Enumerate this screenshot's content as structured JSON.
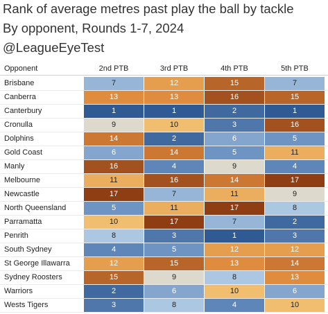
{
  "titles": {
    "line1": "Rank of average metres past play the ball by tackle",
    "line2": "By opponent, Rounds 1-7, 2024",
    "line3": "@LeagueEyeTest"
  },
  "chart_data": {
    "type": "heatmap",
    "row_header": "Opponent",
    "columns": [
      "2nd PTB",
      "3rd PTB",
      "4th PTB",
      "5th PTB"
    ],
    "rows": [
      {
        "label": "Brisbane",
        "values": [
          7,
          12,
          15,
          7
        ]
      },
      {
        "label": "Canberra",
        "values": [
          13,
          13,
          16,
          15
        ]
      },
      {
        "label": "Canterbury",
        "values": [
          1,
          1,
          2,
          1
        ]
      },
      {
        "label": "Cronulla",
        "values": [
          9,
          10,
          3,
          16
        ]
      },
      {
        "label": "Dolphins",
        "values": [
          14,
          2,
          6,
          5
        ]
      },
      {
        "label": "Gold Coast",
        "values": [
          6,
          14,
          5,
          11
        ]
      },
      {
        "label": "Manly",
        "values": [
          16,
          4,
          9,
          4
        ]
      },
      {
        "label": "Melbourne",
        "values": [
          11,
          16,
          14,
          17
        ]
      },
      {
        "label": "Newcastle",
        "values": [
          17,
          7,
          11,
          9
        ]
      },
      {
        "label": "North Queensland",
        "values": [
          5,
          11,
          17,
          8
        ]
      },
      {
        "label": "Parramatta",
        "values": [
          10,
          17,
          7,
          2
        ]
      },
      {
        "label": "Penrith",
        "values": [
          8,
          3,
          1,
          3
        ]
      },
      {
        "label": "South Sydney",
        "values": [
          4,
          5,
          12,
          12
        ]
      },
      {
        "label": "St George Illawarra",
        "values": [
          12,
          15,
          13,
          14
        ]
      },
      {
        "label": "Sydney Roosters",
        "values": [
          15,
          9,
          8,
          13
        ]
      },
      {
        "label": "Warriors",
        "values": [
          2,
          6,
          10,
          6
        ]
      },
      {
        "label": "Wests Tigers",
        "values": [
          3,
          8,
          4,
          10
        ]
      }
    ],
    "color_scale": {
      "low_rank": "#2f5a93",
      "mid_rank": "#ddd9cd",
      "high_rank": "#8f3d13",
      "range": [
        1,
        17
      ]
    }
  }
}
